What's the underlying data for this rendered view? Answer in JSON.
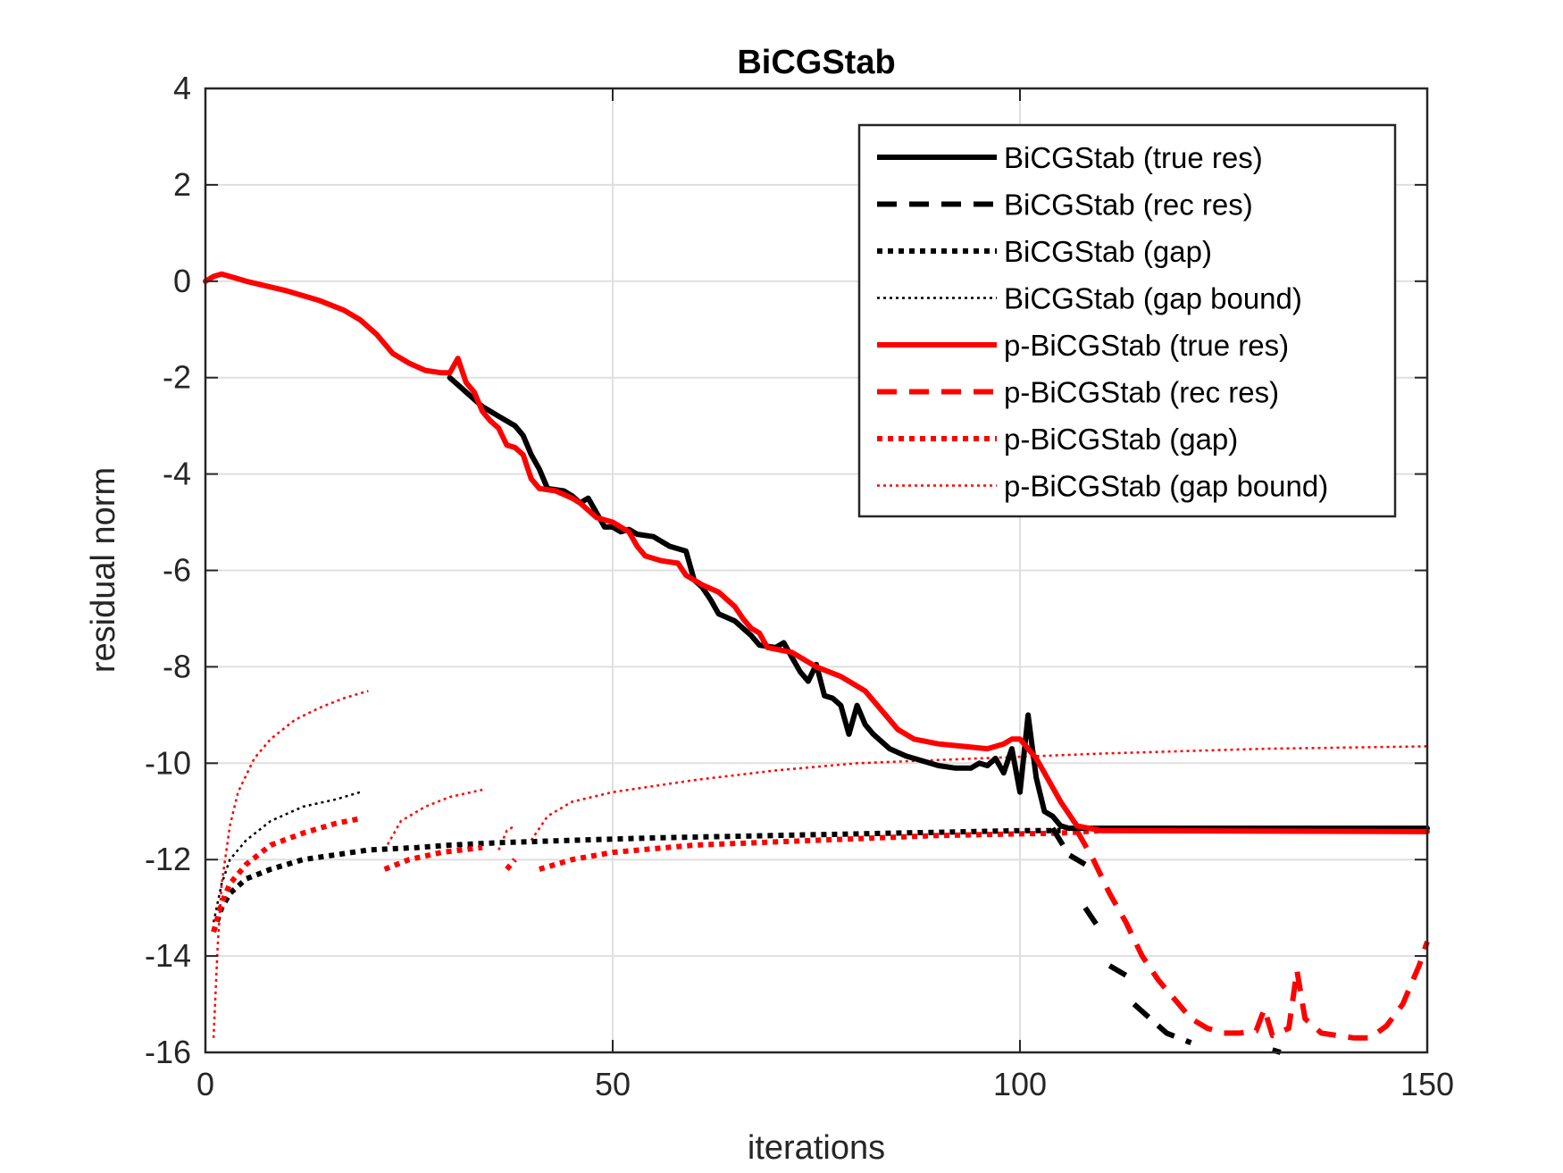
{
  "chart_data": {
    "type": "line",
    "title": "BiCGStab",
    "xlabel": "iterations",
    "ylabel": "residual norm",
    "xlim": [
      0,
      150
    ],
    "ylim": [
      -16,
      4
    ],
    "xticks": [
      0,
      50,
      100,
      150
    ],
    "yticks": [
      4,
      2,
      0,
      -2,
      -4,
      -6,
      -8,
      -10,
      -12,
      -14,
      -16
    ],
    "xtick_labels": [
      "0",
      "50",
      "100",
      "150"
    ],
    "ytick_labels": [
      "4",
      "2",
      "0",
      "-2",
      "-4",
      "-6",
      "-8",
      "-10",
      "-12",
      "-14",
      "-16"
    ],
    "grid": true,
    "legend_location": "top-right",
    "series": [
      {
        "name": "BiCGStab (true res)",
        "color": "#000000",
        "style": "solid",
        "segments": [
          [
            [
              30,
              -2.0
            ],
            [
              32,
              -2.3
            ],
            [
              34,
              -2.6
            ],
            [
              36,
              -2.8
            ],
            [
              38,
              -3.0
            ],
            [
              39,
              -3.2
            ],
            [
              40,
              -3.6
            ],
            [
              41,
              -3.9
            ],
            [
              42,
              -4.3
            ],
            [
              44,
              -4.35
            ],
            [
              45,
              -4.45
            ],
            [
              46,
              -4.6
            ],
            [
              47,
              -4.5
            ],
            [
              48,
              -4.8
            ],
            [
              49,
              -5.1
            ],
            [
              50,
              -5.1
            ],
            [
              51,
              -5.2
            ],
            [
              52,
              -5.15
            ],
            [
              53,
              -5.25
            ],
            [
              55,
              -5.3
            ],
            [
              57,
              -5.5
            ],
            [
              59,
              -5.6
            ],
            [
              60,
              -6.2
            ],
            [
              61,
              -6.35
            ],
            [
              62,
              -6.6
            ],
            [
              63,
              -6.9
            ],
            [
              65,
              -7.05
            ],
            [
              66,
              -7.2
            ],
            [
              67,
              -7.35
            ],
            [
              68,
              -7.55
            ],
            [
              70,
              -7.6
            ],
            [
              71,
              -7.5
            ],
            [
              72,
              -7.8
            ],
            [
              73,
              -8.1
            ],
            [
              74,
              -8.3
            ],
            [
              75,
              -7.95
            ],
            [
              76,
              -8.6
            ],
            [
              77,
              -8.65
            ],
            [
              78,
              -8.8
            ],
            [
              79,
              -9.4
            ],
            [
              80,
              -8.8
            ],
            [
              81,
              -9.2
            ],
            [
              82,
              -9.4
            ],
            [
              84,
              -9.7
            ],
            [
              86,
              -9.85
            ],
            [
              88,
              -9.95
            ],
            [
              90,
              -10.05
            ],
            [
              92,
              -10.1
            ],
            [
              94,
              -10.1
            ],
            [
              95,
              -10.0
            ],
            [
              96,
              -10.05
            ],
            [
              97,
              -9.9
            ],
            [
              98,
              -10.2
            ],
            [
              99,
              -9.7
            ],
            [
              100,
              -10.6
            ],
            [
              101,
              -9.0
            ],
            [
              102,
              -10.3
            ],
            [
              103,
              -11.0
            ],
            [
              104,
              -11.1
            ],
            [
              105,
              -11.3
            ],
            [
              106,
              -11.35
            ],
            [
              107,
              -11.35
            ],
            [
              110,
              -11.35
            ],
            [
              150,
              -11.35
            ]
          ]
        ]
      },
      {
        "name": "BiCGStab (rec res)",
        "color": "#000000",
        "style": "dashed",
        "segments": [
          [
            [
              104,
              -11.35
            ],
            [
              106,
              -11.9
            ],
            [
              108,
              -12.1
            ]
          ],
          [
            [
              108,
              -13.0
            ],
            [
              110,
              -13.5
            ]
          ],
          [
            [
              111,
              -14.2
            ],
            [
              113,
              -14.4
            ]
          ],
          [
            [
              114,
              -15.0
            ],
            [
              116,
              -15.3
            ],
            [
              118,
              -15.6
            ],
            [
              121,
              -15.8
            ]
          ],
          [
            [
              131,
              -15.95
            ],
            [
              132,
              -16.0
            ]
          ]
        ]
      },
      {
        "name": "BiCGStab (gap)",
        "color": "#000000",
        "style": "dotted",
        "segments": [
          [
            [
              1,
              -13.5
            ],
            [
              2,
              -13.0
            ],
            [
              3,
              -12.7
            ],
            [
              5,
              -12.4
            ],
            [
              8,
              -12.2
            ],
            [
              12,
              -12.0
            ],
            [
              16,
              -11.9
            ],
            [
              20,
              -11.8
            ],
            [
              26,
              -11.75
            ],
            [
              30,
              -11.7
            ],
            [
              36,
              -11.65
            ],
            [
              45,
              -11.6
            ],
            [
              55,
              -11.55
            ],
            [
              70,
              -11.5
            ],
            [
              85,
              -11.45
            ],
            [
              100,
              -11.4
            ],
            [
              105,
              -11.4
            ]
          ]
        ]
      },
      {
        "name": "BiCGStab (gap bound)",
        "color": "#000000",
        "style": "dotted-thin",
        "segments": [
          [
            [
              1,
              -13.3
            ],
            [
              2,
              -12.5
            ],
            [
              3,
              -12.0
            ],
            [
              5,
              -11.6
            ],
            [
              8,
              -11.2
            ],
            [
              12,
              -10.9
            ],
            [
              16,
              -10.75
            ],
            [
              19,
              -10.6
            ]
          ]
        ]
      },
      {
        "name": "p-BiCGStab (true res)",
        "color": "#ff0000",
        "style": "solid",
        "segments": [
          [
            [
              0,
              0.0
            ],
            [
              1,
              0.1
            ],
            [
              2,
              0.15
            ],
            [
              3,
              0.1
            ],
            [
              5,
              0.0
            ],
            [
              10,
              -0.2
            ],
            [
              14,
              -0.4
            ],
            [
              17,
              -0.6
            ],
            [
              19,
              -0.8
            ],
            [
              21,
              -1.1
            ],
            [
              23,
              -1.5
            ],
            [
              25,
              -1.7
            ],
            [
              27,
              -1.85
            ],
            [
              29,
              -1.9
            ],
            [
              30,
              -1.9
            ],
            [
              31,
              -1.6
            ],
            [
              32,
              -2.1
            ],
            [
              33,
              -2.3
            ],
            [
              34,
              -2.7
            ],
            [
              35,
              -2.9
            ],
            [
              36,
              -3.05
            ],
            [
              37,
              -3.4
            ],
            [
              38,
              -3.45
            ],
            [
              39,
              -3.6
            ],
            [
              40,
              -4.1
            ],
            [
              41,
              -4.3
            ],
            [
              43,
              -4.35
            ],
            [
              45,
              -4.5
            ],
            [
              46,
              -4.6
            ],
            [
              48,
              -4.9
            ],
            [
              50,
              -5.0
            ],
            [
              51,
              -5.1
            ],
            [
              52,
              -5.2
            ],
            [
              53,
              -5.5
            ],
            [
              54,
              -5.7
            ],
            [
              56,
              -5.8
            ],
            [
              58,
              -5.85
            ],
            [
              59,
              -6.1
            ],
            [
              61,
              -6.3
            ],
            [
              63,
              -6.45
            ],
            [
              65,
              -6.75
            ],
            [
              66,
              -7.0
            ],
            [
              67,
              -7.2
            ],
            [
              68,
              -7.3
            ],
            [
              69,
              -7.6
            ],
            [
              72,
              -7.7
            ],
            [
              75,
              -8.0
            ],
            [
              78,
              -8.2
            ],
            [
              81,
              -8.5
            ],
            [
              83,
              -8.9
            ],
            [
              85,
              -9.3
            ],
            [
              87,
              -9.5
            ],
            [
              90,
              -9.6
            ],
            [
              93,
              -9.65
            ],
            [
              96,
              -9.7
            ],
            [
              98,
              -9.6
            ],
            [
              99,
              -9.5
            ],
            [
              100,
              -9.5
            ],
            [
              101,
              -9.7
            ],
            [
              102,
              -9.9
            ],
            [
              103,
              -10.2
            ],
            [
              105,
              -10.8
            ],
            [
              107,
              -11.3
            ],
            [
              110,
              -11.4
            ],
            [
              150,
              -11.42
            ]
          ]
        ]
      },
      {
        "name": "p-BiCGStab (rec res)",
        "color": "#ff0000",
        "style": "dashed",
        "segments": [
          [
            [
              107,
              -11.4
            ],
            [
              109,
              -12.0
            ],
            [
              111,
              -12.7
            ],
            [
              113,
              -13.3
            ],
            [
              115,
              -14.0
            ],
            [
              117,
              -14.5
            ],
            [
              119,
              -14.9
            ],
            [
              121,
              -15.3
            ],
            [
              123,
              -15.5
            ],
            [
              125,
              -15.6
            ],
            [
              127,
              -15.6
            ],
            [
              129,
              -15.55
            ],
            [
              130,
              -15.1
            ],
            [
              131,
              -15.65
            ],
            [
              133,
              -15.5
            ],
            [
              134,
              -14.3
            ],
            [
              135,
              -15.3
            ],
            [
              137,
              -15.6
            ],
            [
              139,
              -15.65
            ],
            [
              141,
              -15.7
            ],
            [
              143,
              -15.7
            ],
            [
              145,
              -15.45
            ],
            [
              147,
              -15.0
            ],
            [
              149,
              -14.2
            ],
            [
              150,
              -13.7
            ]
          ]
        ]
      },
      {
        "name": "p-BiCGStab (gap)",
        "color": "#ff0000",
        "style": "dotted",
        "segments": [
          [
            [
              1,
              -13.5
            ],
            [
              2,
              -12.9
            ],
            [
              3,
              -12.5
            ],
            [
              5,
              -12.1
            ],
            [
              8,
              -11.7
            ],
            [
              12,
              -11.45
            ],
            [
              16,
              -11.25
            ],
            [
              19,
              -11.15
            ]
          ],
          [
            [
              22,
              -12.2
            ],
            [
              25,
              -12.0
            ],
            [
              29,
              -11.85
            ],
            [
              34,
              -11.75
            ]
          ],
          [
            [
              37,
              -12.2
            ],
            [
              38,
              -12.0
            ]
          ],
          [
            [
              41,
              -12.2
            ],
            [
              45,
              -12.0
            ],
            [
              50,
              -11.85
            ],
            [
              60,
              -11.7
            ],
            [
              75,
              -11.6
            ],
            [
              90,
              -11.5
            ],
            [
              105,
              -11.45
            ],
            [
              110,
              -11.4
            ]
          ]
        ]
      },
      {
        "name": "p-BiCGStab (gap bound)",
        "color": "#ff0000",
        "style": "dotted-thin",
        "segments": [
          [
            [
              1,
              -15.7
            ],
            [
              1.5,
              -13.8
            ],
            [
              2,
              -12.5
            ],
            [
              3,
              -11.3
            ],
            [
              4,
              -10.6
            ],
            [
              6,
              -9.9
            ],
            [
              8,
              -9.5
            ],
            [
              11,
              -9.1
            ],
            [
              14,
              -8.85
            ],
            [
              17,
              -8.65
            ],
            [
              20,
              -8.5
            ]
          ],
          [
            [
              22,
              -11.8
            ],
            [
              24,
              -11.2
            ],
            [
              27,
              -10.9
            ],
            [
              30,
              -10.7
            ],
            [
              34,
              -10.55
            ]
          ],
          [
            [
              36,
              -11.8
            ],
            [
              37,
              -11.4
            ],
            [
              38,
              -11.3
            ]
          ],
          [
            [
              40,
              -11.6
            ],
            [
              42,
              -11.1
            ],
            [
              45,
              -10.8
            ],
            [
              50,
              -10.6
            ],
            [
              60,
              -10.35
            ],
            [
              70,
              -10.15
            ],
            [
              80,
              -10.0
            ],
            [
              95,
              -9.9
            ],
            [
              110,
              -9.8
            ],
            [
              130,
              -9.7
            ],
            [
              150,
              -9.65
            ]
          ]
        ]
      }
    ]
  }
}
